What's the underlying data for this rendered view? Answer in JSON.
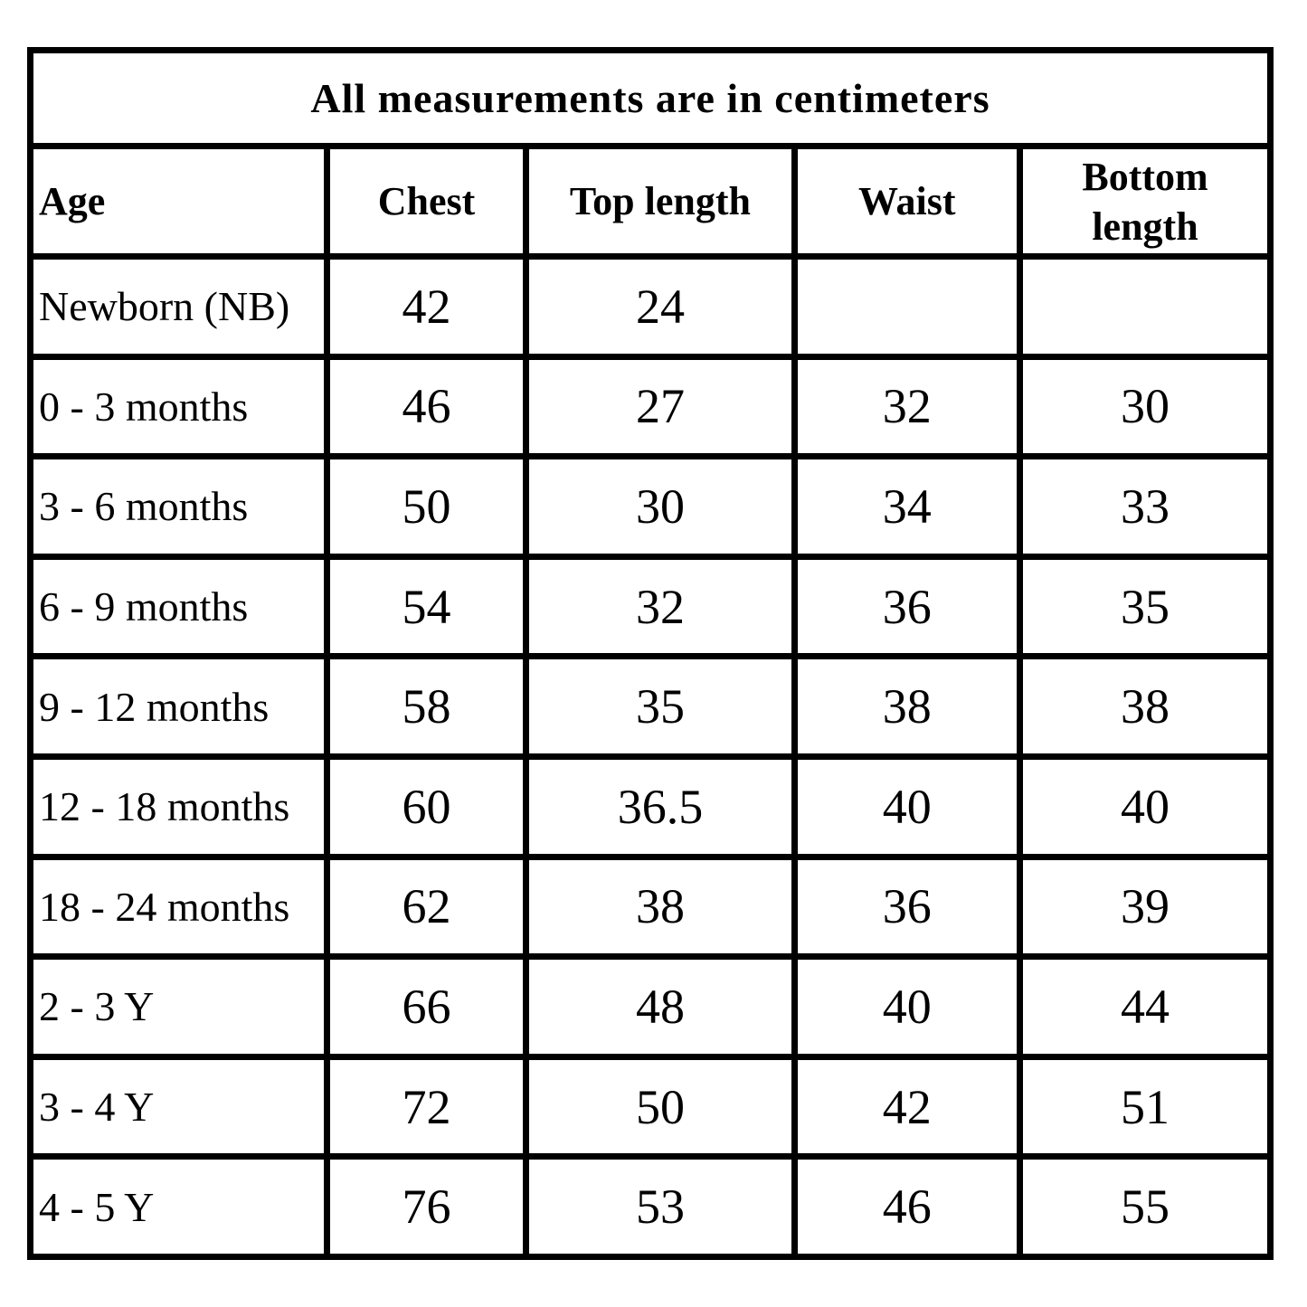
{
  "colors": {
    "border": "#000000",
    "background": "#ffffff",
    "text": "#000000"
  },
  "table": {
    "title": "All measurements are in centimeters",
    "columns": [
      "Age",
      "Chest",
      "Top length",
      "Waist",
      "Bottom length"
    ],
    "rows": [
      [
        "Newborn (NB)",
        "42",
        "24",
        "",
        ""
      ],
      [
        "0 - 3 months",
        "46",
        "27",
        "32",
        "30"
      ],
      [
        "3 - 6 months",
        "50",
        "30",
        "34",
        "33"
      ],
      [
        "6 - 9 months",
        "54",
        "32",
        "36",
        "35"
      ],
      [
        "9 - 12 months",
        "58",
        "35",
        "38",
        "38"
      ],
      [
        "12 - 18 months",
        "60",
        "36.5",
        "40",
        "40"
      ],
      [
        "18 - 24 months",
        "62",
        "38",
        "36",
        "39"
      ],
      [
        "2 - 3 Y",
        "66",
        "48",
        "40",
        "44"
      ],
      [
        "3 - 4 Y",
        "72",
        "50",
        "42",
        "51"
      ],
      [
        "4 - 5 Y",
        "76",
        "53",
        "46",
        "55"
      ]
    ]
  }
}
